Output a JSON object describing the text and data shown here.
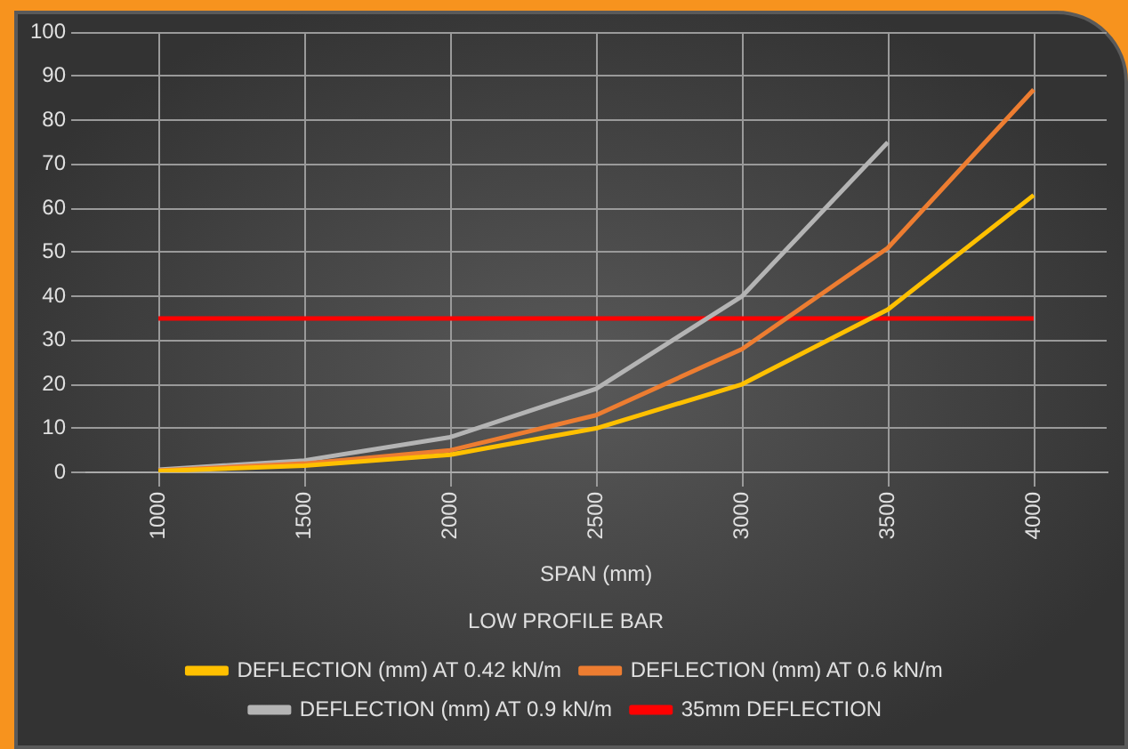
{
  "chart_data": {
    "type": "line",
    "title": "LOW PROFILE BAR",
    "xlabel": "SPAN (mm)",
    "categories": [
      "1000",
      "1500",
      "2000",
      "2500",
      "3000",
      "3500",
      "4000"
    ],
    "series": [
      {
        "name": "DEFLECTION (mm) AT 0.42 kN/m",
        "color": "#ffc000",
        "values": [
          0.3,
          1.5,
          4,
          10,
          20,
          37,
          63
        ]
      },
      {
        "name": "DEFLECTION (mm) AT 0.6 kN/m",
        "color": "#ed7d31",
        "values": [
          0.4,
          2,
          5,
          13,
          28,
          51,
          87
        ]
      },
      {
        "name": "DEFLECTION (mm) AT 0.9 kN/m",
        "color": "#b4b4b4",
        "values": [
          0.6,
          2.7,
          8,
          19,
          40,
          75,
          null
        ]
      },
      {
        "name": "35mm DEFLECTION",
        "color": "#ff0000",
        "values": [
          35,
          35,
          35,
          35,
          35,
          35,
          35
        ]
      }
    ],
    "ylim": [
      0,
      100
    ],
    "yticks": [
      0,
      10,
      20,
      30,
      40,
      50,
      60,
      70,
      80,
      90,
      100
    ],
    "grid": true,
    "legend": "bottom",
    "marker": "none",
    "line_style": "solid"
  }
}
